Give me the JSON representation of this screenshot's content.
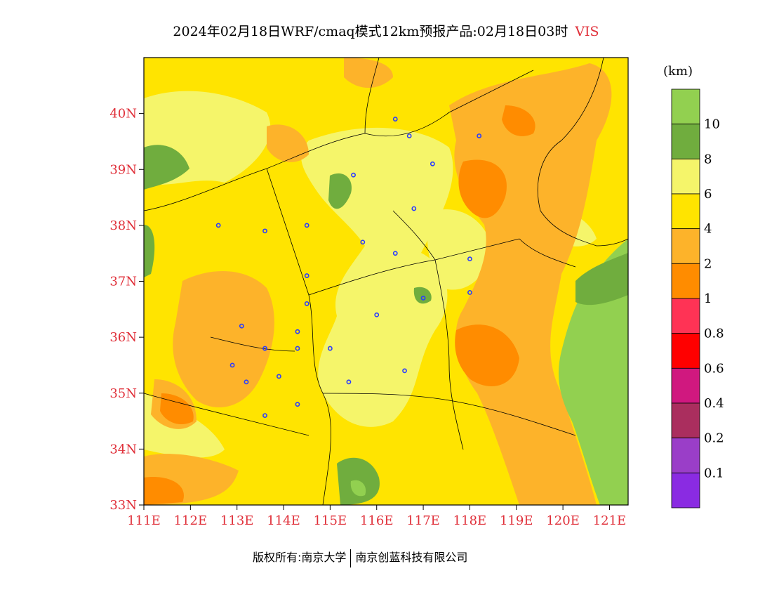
{
  "title": {
    "main": "2024年02月18日WRF/cmaq模式12km预报产品:02月18日03时",
    "variable": "VIS"
  },
  "map": {
    "lat_ticks": [
      "40N",
      "39N",
      "38N",
      "37N",
      "36N",
      "35N",
      "34N",
      "33N"
    ],
    "lon_ticks": [
      "111E",
      "112E",
      "113E",
      "114E",
      "115E",
      "116E",
      "117E",
      "118E",
      "119E",
      "120E",
      "121E"
    ],
    "extent": {
      "lon_min": 111,
      "lon_max": 121.4,
      "lat_min": 33,
      "lat_max": 41
    },
    "stations": [
      [
        116.4,
        39.9
      ],
      [
        116.7,
        39.6
      ],
      [
        117.2,
        39.1
      ],
      [
        118.2,
        39.6
      ],
      [
        115.5,
        38.9
      ],
      [
        116.8,
        38.3
      ],
      [
        112.6,
        38.0
      ],
      [
        113.6,
        37.9
      ],
      [
        114.5,
        38.0
      ],
      [
        115.7,
        37.7
      ],
      [
        116.4,
        37.5
      ],
      [
        118.0,
        37.4
      ],
      [
        114.5,
        37.1
      ],
      [
        114.5,
        36.6
      ],
      [
        116.0,
        36.4
      ],
      [
        117.0,
        36.7
      ],
      [
        118.0,
        36.8
      ],
      [
        113.1,
        36.2
      ],
      [
        114.3,
        36.1
      ],
      [
        114.3,
        35.8
      ],
      [
        115.0,
        35.8
      ],
      [
        113.6,
        35.8
      ],
      [
        112.9,
        35.5
      ],
      [
        113.2,
        35.2
      ],
      [
        113.9,
        35.3
      ],
      [
        115.4,
        35.2
      ],
      [
        116.6,
        35.4
      ],
      [
        114.3,
        34.8
      ],
      [
        113.6,
        34.6
      ]
    ]
  },
  "colorbar": {
    "unit": "(km)",
    "labels": [
      "10",
      "8",
      "6",
      "4",
      "2",
      "1",
      "0.8",
      "0.6",
      "0.4",
      "0.2",
      "0.1"
    ],
    "colors": [
      "#92d050",
      "#70ad3e",
      "#f5f56a",
      "#ffe400",
      "#fdb32a",
      "#ff8c00",
      "#ff3355",
      "#ff0000",
      "#d0187f",
      "#aa2e5e",
      "#9a3ec8",
      "#8a2be2"
    ]
  },
  "footer": {
    "left": "版权所有:南京大学",
    "right": "南京创蓝科技有限公司"
  },
  "colors": {
    "axis_red": "#e0303a",
    "station_blue": "#2a3cff",
    "sea_green": "#92d050"
  }
}
